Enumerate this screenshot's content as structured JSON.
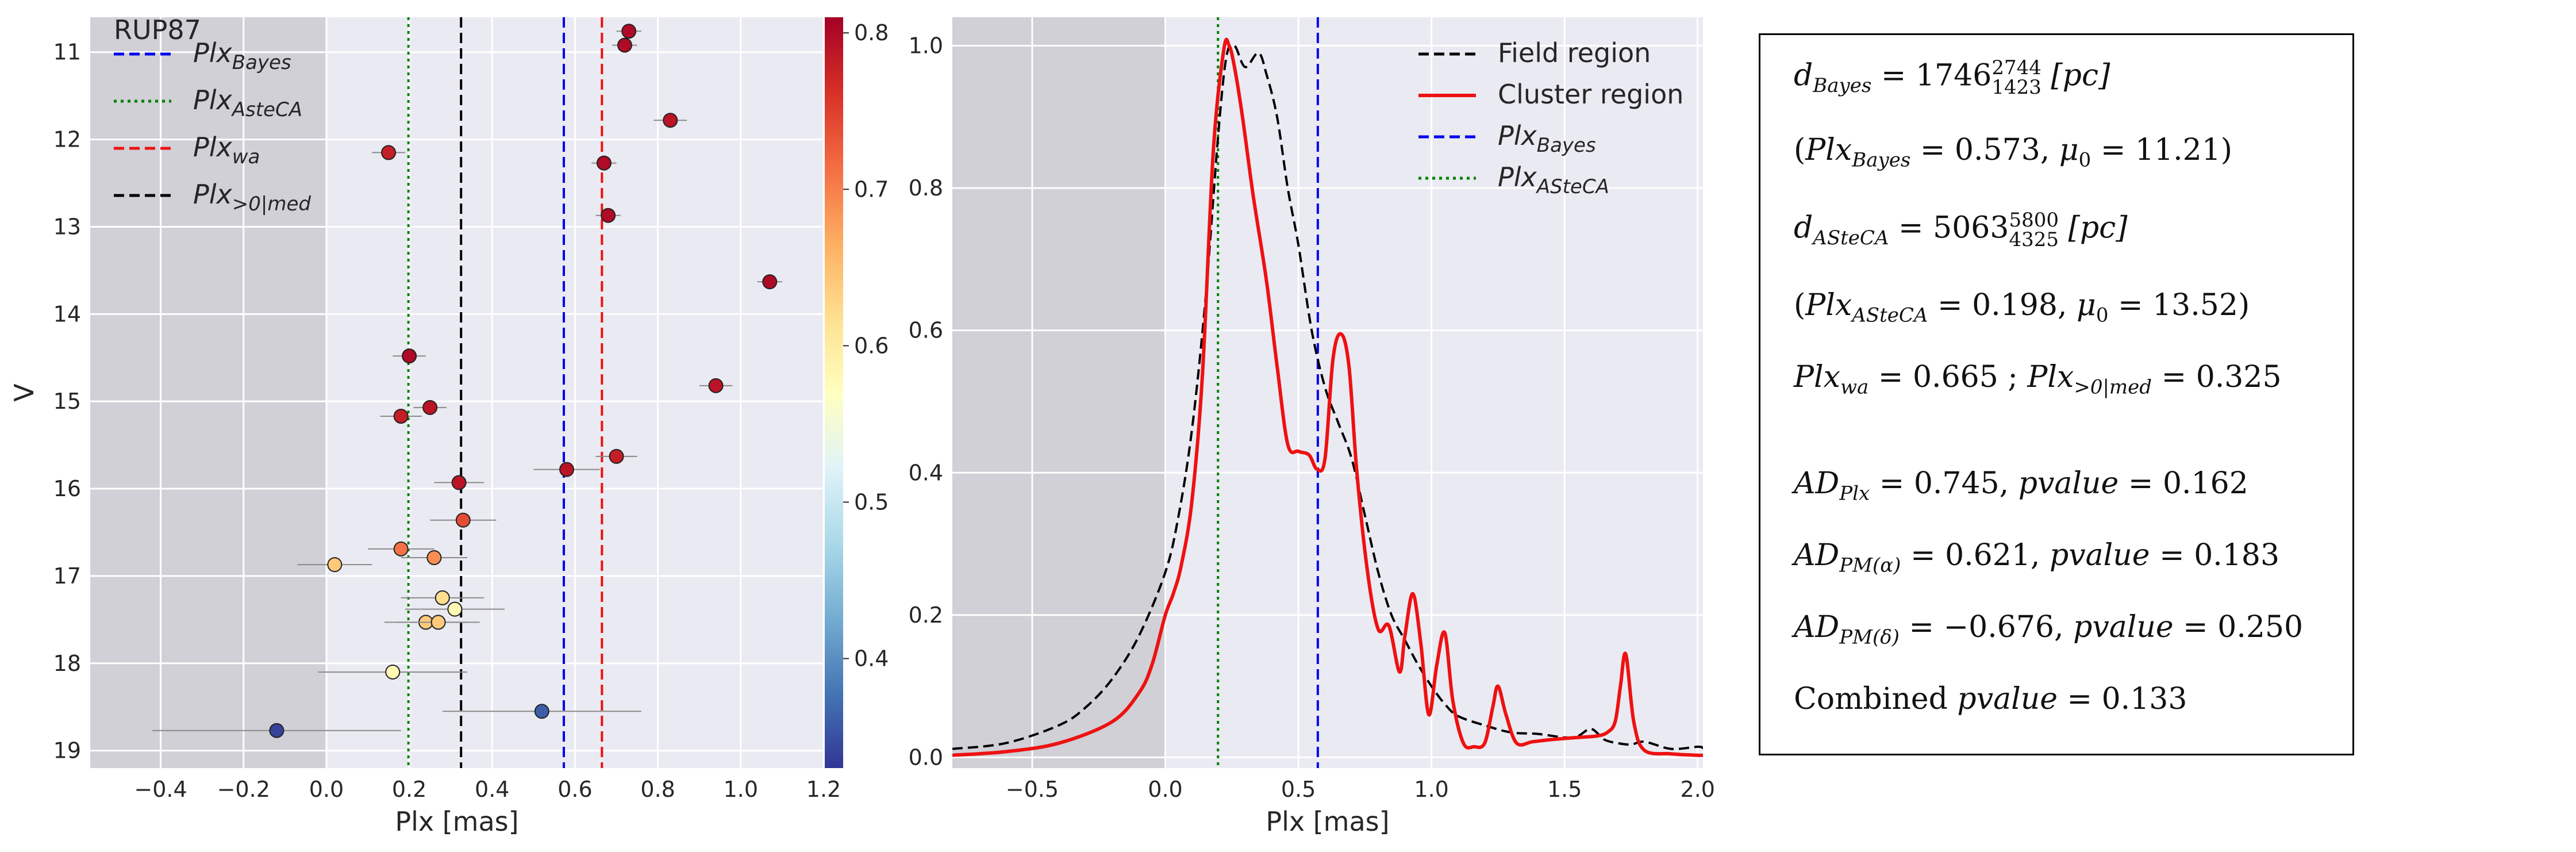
{
  "chart_data": [
    {
      "type": "scatter",
      "title": "RUP87",
      "xlabel": "Plx [mas]",
      "ylabel": "V",
      "xlim": [
        -0.57,
        1.2
      ],
      "ylim": [
        19.2,
        10.6
      ],
      "y_inverted": true,
      "x_ticks": [
        "−0.4",
        "−0.2",
        "0.0",
        "0.2",
        "0.4",
        "0.6",
        "0.8",
        "1.0",
        "1.2"
      ],
      "y_ticks": [
        "11",
        "12",
        "13",
        "14",
        "15",
        "16",
        "17",
        "18",
        "19"
      ],
      "grid": true,
      "shaded_region": {
        "x_from": -0.57,
        "x_to": 0.0,
        "color": "#d0d0d6"
      },
      "colorbar": {
        "vmin": 0.33,
        "vmax": 0.81,
        "ticks": [
          "0.4",
          "0.5",
          "0.6",
          "0.7",
          "0.8"
        ],
        "colormap": "RdYlBu_r"
      },
      "vlines": [
        {
          "name": "Plx_Bayes",
          "x": 0.573,
          "color": "#0000ee",
          "style": "dashed"
        },
        {
          "name": "Plx_ASteCA",
          "x": 0.198,
          "color": "#008000",
          "style": "dotted"
        },
        {
          "name": "Plx_wa",
          "x": 0.665,
          "color": "#ee1111",
          "style": "dashed"
        },
        {
          "name": "Plx_>0|med",
          "x": 0.325,
          "color": "#000000",
          "style": "dashed"
        }
      ],
      "legend": {
        "placement": "top-left",
        "entries": [
          {
            "base": "Plx",
            "sub": "Bayes",
            "color": "#0000ee",
            "style": "dashed"
          },
          {
            "base": "Plx",
            "sub": "AsteCA",
            "color": "#008000",
            "style": "dotted"
          },
          {
            "base": "Plx",
            "sub": "wa",
            "color": "#ee1111",
            "style": "dashed"
          },
          {
            "base": "Plx",
            "sub": ">0|med",
            "color": "#000000",
            "style": "dashed"
          }
        ]
      },
      "points": [
        {
          "plx": 0.73,
          "v": 10.76,
          "err": 0.03,
          "p": 0.8
        },
        {
          "plx": 0.72,
          "v": 10.92,
          "err": 0.03,
          "p": 0.8
        },
        {
          "plx": 0.83,
          "v": 11.78,
          "err": 0.04,
          "p": 0.79
        },
        {
          "plx": 0.15,
          "v": 12.15,
          "err": 0.04,
          "p": 0.78
        },
        {
          "plx": 0.67,
          "v": 12.27,
          "err": 0.03,
          "p": 0.8
        },
        {
          "plx": 0.68,
          "v": 12.87,
          "err": 0.03,
          "p": 0.8
        },
        {
          "plx": 1.07,
          "v": 13.63,
          "err": 0.03,
          "p": 0.8
        },
        {
          "plx": 0.2,
          "v": 14.48,
          "err": 0.04,
          "p": 0.8
        },
        {
          "plx": 0.94,
          "v": 14.82,
          "err": 0.04,
          "p": 0.79
        },
        {
          "plx": 0.25,
          "v": 15.07,
          "err": 0.04,
          "p": 0.79
        },
        {
          "plx": 0.18,
          "v": 15.17,
          "err": 0.05,
          "p": 0.78
        },
        {
          "plx": 0.7,
          "v": 15.63,
          "err": 0.05,
          "p": 0.78
        },
        {
          "plx": 0.58,
          "v": 15.78,
          "err": 0.08,
          "p": 0.79
        },
        {
          "plx": 0.32,
          "v": 15.93,
          "err": 0.06,
          "p": 0.79
        },
        {
          "plx": 0.33,
          "v": 16.36,
          "err": 0.08,
          "p": 0.74
        },
        {
          "plx": 0.18,
          "v": 16.69,
          "err": 0.08,
          "p": 0.71
        },
        {
          "plx": 0.26,
          "v": 16.79,
          "err": 0.08,
          "p": 0.69
        },
        {
          "plx": 0.02,
          "v": 16.87,
          "err": 0.09,
          "p": 0.64
        },
        {
          "plx": 0.28,
          "v": 17.25,
          "err": 0.1,
          "p": 0.62
        },
        {
          "plx": 0.31,
          "v": 17.38,
          "err": 0.12,
          "p": 0.58
        },
        {
          "plx": 0.24,
          "v": 17.53,
          "err": 0.1,
          "p": 0.64
        },
        {
          "plx": 0.27,
          "v": 17.53,
          "err": 0.1,
          "p": 0.64
        },
        {
          "plx": 0.16,
          "v": 18.1,
          "err": 0.18,
          "p": 0.58
        },
        {
          "plx": 0.52,
          "v": 18.55,
          "err": 0.24,
          "p": 0.36
        },
        {
          "plx": -0.12,
          "v": 18.77,
          "err": 0.3,
          "p": 0.34
        }
      ]
    },
    {
      "type": "line",
      "xlabel": "Plx [mas]",
      "ylabel": "",
      "xlim": [
        -0.8,
        2.02
      ],
      "ylim": [
        -0.015,
        1.04
      ],
      "x_ticks": [
        "−0.5",
        "0.0",
        "0.5",
        "1.0",
        "1.5",
        "2.0"
      ],
      "y_ticks": [
        "0.0",
        "0.2",
        "0.4",
        "0.6",
        "0.8",
        "1.0"
      ],
      "grid": true,
      "shaded_region": {
        "x_from": -0.8,
        "x_to": 0.0,
        "color": "#d0d0d6"
      },
      "vlines": [
        {
          "name": "Plx_Bayes",
          "x": 0.573,
          "color": "#0000ee",
          "style": "dashed"
        },
        {
          "name": "Plx_ASteCA",
          "x": 0.198,
          "color": "#008000",
          "style": "dotted"
        }
      ],
      "legend": {
        "placement": "top-right",
        "entries": [
          {
            "label": "Field region",
            "color": "#000000",
            "style": "dashed"
          },
          {
            "label": "Cluster region",
            "color": "#ee1111",
            "style": "solid"
          },
          {
            "base": "Plx",
            "sub": "Bayes",
            "color": "#0000ee",
            "style": "dashed"
          },
          {
            "base": "Plx",
            "sub": "ASteCA",
            "color": "#008000",
            "style": "dotted"
          }
        ]
      },
      "series": [
        {
          "name": "Field region",
          "color": "#000000",
          "style": "dashed",
          "x": [
            -0.8,
            -0.6,
            -0.4,
            -0.3,
            -0.2,
            -0.1,
            0.0,
            0.05,
            0.1,
            0.15,
            0.2,
            0.23,
            0.26,
            0.3,
            0.35,
            0.38,
            0.42,
            0.46,
            0.5,
            0.55,
            0.6,
            0.65,
            0.7,
            0.75,
            0.8,
            0.85,
            0.9,
            0.95,
            1.0,
            1.05,
            1.1,
            1.2,
            1.3,
            1.4,
            1.5,
            1.55,
            1.6,
            1.65,
            1.7,
            1.75,
            1.8,
            1.9,
            2.0,
            2.02
          ],
          "y": [
            0.012,
            0.02,
            0.045,
            0.07,
            0.11,
            0.17,
            0.26,
            0.34,
            0.46,
            0.64,
            0.88,
            0.985,
            1.0,
            0.97,
            0.99,
            0.96,
            0.9,
            0.8,
            0.72,
            0.6,
            0.52,
            0.47,
            0.42,
            0.34,
            0.26,
            0.2,
            0.165,
            0.13,
            0.1,
            0.075,
            0.058,
            0.045,
            0.035,
            0.033,
            0.028,
            0.03,
            0.04,
            0.025,
            0.02,
            0.018,
            0.022,
            0.012,
            0.015,
            0.013
          ]
        },
        {
          "name": "Cluster region",
          "color": "#ee1111",
          "style": "solid",
          "x": [
            -0.8,
            -0.6,
            -0.4,
            -0.2,
            -0.1,
            -0.05,
            0.0,
            0.03,
            0.06,
            0.1,
            0.14,
            0.18,
            0.22,
            0.24,
            0.26,
            0.29,
            0.33,
            0.38,
            0.42,
            0.46,
            0.5,
            0.54,
            0.57,
            0.6,
            0.63,
            0.66,
            0.69,
            0.72,
            0.76,
            0.8,
            0.84,
            0.88,
            0.9,
            0.93,
            0.96,
            0.99,
            1.02,
            1.05,
            1.08,
            1.12,
            1.16,
            1.2,
            1.23,
            1.25,
            1.28,
            1.32,
            1.38,
            1.45,
            1.55,
            1.62,
            1.66,
            1.69,
            1.71,
            1.73,
            1.76,
            1.8,
            1.9,
            2.0,
            2.02
          ],
          "y": [
            0.003,
            0.008,
            0.02,
            0.05,
            0.09,
            0.13,
            0.2,
            0.23,
            0.27,
            0.36,
            0.54,
            0.85,
            0.995,
            1.0,
            0.97,
            0.9,
            0.79,
            0.67,
            0.55,
            0.44,
            0.43,
            0.425,
            0.405,
            0.42,
            0.56,
            0.595,
            0.55,
            0.4,
            0.26,
            0.18,
            0.185,
            0.12,
            0.17,
            0.23,
            0.16,
            0.06,
            0.13,
            0.175,
            0.08,
            0.02,
            0.015,
            0.02,
            0.07,
            0.1,
            0.06,
            0.02,
            0.022,
            0.025,
            0.028,
            0.03,
            0.035,
            0.05,
            0.1,
            0.145,
            0.05,
            0.01,
            0.005,
            0.003,
            0.003
          ]
        }
      ]
    }
  ],
  "info_box": {
    "l1": {
      "name": "d",
      "sub": "Bayes",
      "eq": " = 1746",
      "sup": "2744",
      "sub2": "1423",
      "unit": " [pc]"
    },
    "l2": {
      "open": "(",
      "name": "Plx",
      "sub": "Bayes",
      "eq": " = 0.573,  ",
      "mu": "μ",
      "musub": "0",
      "mueq": " = 11.21)"
    },
    "l3": {
      "name": "d",
      "sub": "ASteCA",
      "eq": " = 5063",
      "sup": "5800",
      "sub2": "4325",
      "unit": " [pc]"
    },
    "l4": {
      "open": "(",
      "name": "Plx",
      "sub": "ASteCA",
      "eq": " = 0.198,  ",
      "mu": "μ",
      "musub": "0",
      "mueq": " = 13.52)"
    },
    "l5": {
      "name": "Plx",
      "sub": "wa",
      "eq": " = 0.665 ; ",
      "name2": "Plx",
      "sub2": ">0|med",
      "eq2": " = 0.325"
    },
    "l6": {
      "name": "AD",
      "sub": "Plx",
      "eq": " = 0.745,  ",
      "pv": "pvalue",
      "pveq": " = 0.162"
    },
    "l7": {
      "name": "AD",
      "sub": "PM(α)",
      "eq": " = 0.621,  ",
      "pv": "pvalue",
      "pveq": " = 0.183"
    },
    "l8": {
      "name": "AD",
      "sub": "PM(δ)",
      "eq": " = −0.676,  ",
      "pv": "pvalue",
      "pveq": " = 0.250"
    },
    "l9": {
      "text": "Combined ",
      "pv": "pvalue",
      "pveq": " = 0.133"
    }
  }
}
